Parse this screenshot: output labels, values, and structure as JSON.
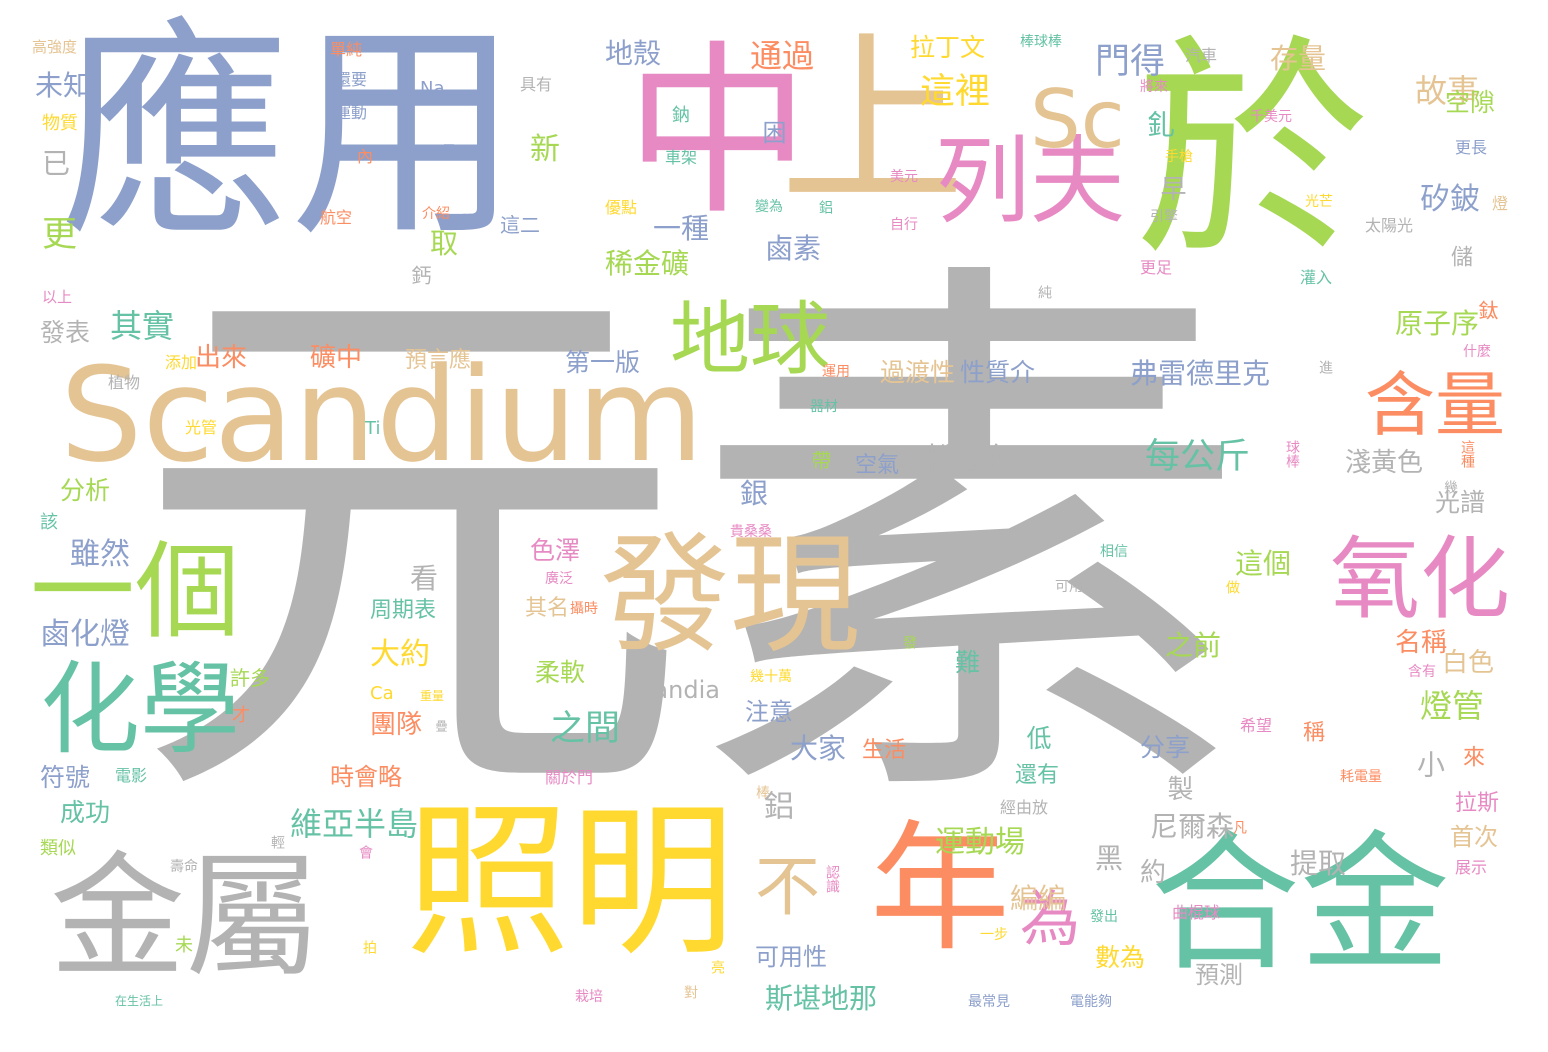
{
  "palette": {
    "gray": "#b3b3b3",
    "blue": "#8da0cb",
    "pink": "#e78ac3",
    "tan": "#e5c494",
    "green": "#a6d854",
    "yellow": "#ffd92f",
    "orange": "#fc8d62",
    "teal": "#66c2a5"
  },
  "words": [
    {
      "text": "元素",
      "color": "#b3b3b3"
    },
    {
      "text": "應用",
      "color": "#8da0cb"
    },
    {
      "text": "中",
      "color": "#e78ac3"
    },
    {
      "text": "上",
      "color": "#e5c494"
    },
    {
      "text": "於",
      "color": "#a6d854"
    },
    {
      "text": "Scandium",
      "color": "#e5c494"
    },
    {
      "text": "照明",
      "color": "#ffd92f"
    },
    {
      "text": "合金",
      "color": "#66c2a5"
    },
    {
      "text": "金屬",
      "color": "#b3b3b3"
    },
    {
      "text": "年",
      "color": "#fc8d62"
    },
    {
      "text": "發現",
      "color": "#e5c494"
    },
    {
      "text": "一個",
      "color": "#a6d854"
    },
    {
      "text": "化學",
      "color": "#66c2a5"
    },
    {
      "text": "氧化",
      "color": "#e78ac3"
    },
    {
      "text": "列夫",
      "color": "#e78ac3"
    },
    {
      "text": "Sc",
      "color": "#e5c494"
    },
    {
      "text": "地球",
      "color": "#a6d854"
    },
    {
      "text": "含量",
      "color": "#fc8d62"
    },
    {
      "text": "不",
      "color": "#e5c494"
    },
    {
      "text": "為",
      "color": "#e78ac3"
    },
    {
      "text": "高強度",
      "color": "#e5c494"
    },
    {
      "text": "未知",
      "color": "#8da0cb"
    },
    {
      "text": "物質",
      "color": "#ffd92f"
    },
    {
      "text": "已",
      "color": "#b3b3b3"
    },
    {
      "text": "更",
      "color": "#a6d854"
    },
    {
      "text": "以上",
      "color": "#e78ac3"
    },
    {
      "text": "發表",
      "color": "#b3b3b3"
    },
    {
      "text": "其實",
      "color": "#66c2a5"
    },
    {
      "text": "植物",
      "color": "#b3b3b3"
    },
    {
      "text": "添加",
      "color": "#ffd92f"
    },
    {
      "text": "出來",
      "color": "#fc8d62"
    },
    {
      "text": "礦中",
      "color": "#fc8d62"
    },
    {
      "text": "預言應",
      "color": "#e5c494"
    },
    {
      "text": "第一版",
      "color": "#8da0cb"
    },
    {
      "text": "光管",
      "color": "#ffd92f"
    },
    {
      "text": "Ti",
      "color": "#66c2a5"
    },
    {
      "text": "分析",
      "color": "#a6d854"
    },
    {
      "text": "該",
      "color": "#66c2a5"
    },
    {
      "text": "雖然",
      "color": "#8da0cb"
    },
    {
      "text": "看",
      "color": "#b3b3b3"
    },
    {
      "text": "鹵化燈",
      "color": "#8da0cb"
    },
    {
      "text": "許多",
      "color": "#a6d854"
    },
    {
      "text": "才",
      "color": "#fc8d62"
    },
    {
      "text": "Ca",
      "color": "#ffd92f"
    },
    {
      "text": "重量",
      "color": "#ffd92f"
    },
    {
      "text": "疊",
      "color": "#b3b3b3"
    },
    {
      "text": "符號",
      "color": "#8da0cb"
    },
    {
      "text": "電影",
      "color": "#66c2a5"
    },
    {
      "text": "成功",
      "color": "#66c2a5"
    },
    {
      "text": "類似",
      "color": "#a6d854"
    },
    {
      "text": "壽命",
      "color": "#b3b3b3"
    },
    {
      "text": "輕",
      "color": "#b3b3b3"
    },
    {
      "text": "會",
      "color": "#e78ac3"
    },
    {
      "text": "未",
      "color": "#a6d854"
    },
    {
      "text": "拍",
      "color": "#ffd92f"
    },
    {
      "text": "在生活上",
      "color": "#66c2a5"
    },
    {
      "text": "單純",
      "color": "#fc8d62"
    },
    {
      "text": "還要",
      "color": "#8da0cb"
    },
    {
      "text": "運動",
      "color": "#8da0cb"
    },
    {
      "text": "內",
      "color": "#fc8d62"
    },
    {
      "text": "航空",
      "color": "#fc8d62"
    },
    {
      "text": "介紹",
      "color": "#fc8d62"
    },
    {
      "text": "Na",
      "color": "#8da0cb"
    },
    {
      "text": "具有",
      "color": "#b3b3b3"
    },
    {
      "text": "品",
      "color": "#8da0cb"
    },
    {
      "text": "新",
      "color": "#a6d854"
    },
    {
      "text": "這二",
      "color": "#8da0cb"
    },
    {
      "text": "取",
      "color": "#a6d854"
    },
    {
      "text": "鈣",
      "color": "#b3b3b3"
    },
    {
      "text": "地殼",
      "color": "#8da0cb"
    },
    {
      "text": "通過",
      "color": "#fc8d62"
    },
    {
      "text": "鈉",
      "color": "#66c2a5"
    },
    {
      "text": "困",
      "color": "#8da0cb"
    },
    {
      "text": "車架",
      "color": "#66c2a5"
    },
    {
      "text": "優點",
      "color": "#ffd92f"
    },
    {
      "text": "一種",
      "color": "#8da0cb"
    },
    {
      "text": "變為",
      "color": "#66c2a5"
    },
    {
      "text": "鋁",
      "color": "#66c2a5"
    },
    {
      "text": "稀金礦",
      "color": "#a6d854"
    },
    {
      "text": "鹵素",
      "color": "#8da0cb"
    },
    {
      "text": "拉丁文",
      "color": "#ffd92f"
    },
    {
      "text": "這裡",
      "color": "#ffd92f"
    },
    {
      "text": "門得",
      "color": "#8da0cb"
    },
    {
      "text": "棒球棒",
      "color": "#66c2a5"
    },
    {
      "text": "汽車",
      "color": "#b3b3b3"
    },
    {
      "text": "存量",
      "color": "#e5c494"
    },
    {
      "text": "將來",
      "color": "#e78ac3"
    },
    {
      "text": "故事",
      "color": "#e5c494"
    },
    {
      "text": "千美元",
      "color": "#e78ac3"
    },
    {
      "text": "空隙",
      "color": "#a6d854"
    },
    {
      "text": "更長",
      "color": "#8da0cb"
    },
    {
      "text": "釓",
      "color": "#66c2a5"
    },
    {
      "text": "手槍",
      "color": "#ffd92f"
    },
    {
      "text": "美元",
      "color": "#e78ac3"
    },
    {
      "text": "早",
      "color": "#b3b3b3"
    },
    {
      "text": "光芒",
      "color": "#ffd92f"
    },
    {
      "text": "燈",
      "color": "#e5c494"
    },
    {
      "text": "自行",
      "color": "#e78ac3"
    },
    {
      "text": "引擎",
      "color": "#b3b3b3"
    },
    {
      "text": "矽鈹",
      "color": "#8da0cb"
    },
    {
      "text": "太陽光",
      "color": "#b3b3b3"
    },
    {
      "text": "儲",
      "color": "#b3b3b3"
    },
    {
      "text": "鈦",
      "color": "#fc8d62"
    },
    {
      "text": "純",
      "color": "#b3b3b3"
    },
    {
      "text": "更足",
      "color": "#e78ac3"
    },
    {
      "text": "灌入",
      "color": "#66c2a5"
    },
    {
      "text": "原子序",
      "color": "#a6d854"
    },
    {
      "text": "什麼",
      "color": "#e78ac3"
    },
    {
      "text": "過渡性",
      "color": "#e5c494"
    },
    {
      "text": "性質介",
      "color": "#8da0cb"
    },
    {
      "text": "弗雷德里克",
      "color": "#8da0cb"
    },
    {
      "text": "進",
      "color": "#b3b3b3"
    },
    {
      "text": "運用",
      "color": "#fc8d62"
    },
    {
      "text": "器材",
      "color": "#66c2a5"
    },
    {
      "text": "每公斤",
      "color": "#66c2a5"
    },
    {
      "text": "帶",
      "color": "#a6d854"
    },
    {
      "text": "空氣",
      "color": "#8da0cb"
    },
    {
      "text": "粉紅色",
      "color": "#b3b3b3"
    },
    {
      "text": "淺黃色",
      "color": "#b3b3b3"
    },
    {
      "text": "球棒",
      "color": "#e78ac3"
    },
    {
      "text": "這種",
      "color": "#fc8d62"
    },
    {
      "text": "光譜",
      "color": "#b3b3b3"
    },
    {
      "text": "銀",
      "color": "#8da0cb"
    },
    {
      "text": "幾",
      "color": "#b3b3b3"
    },
    {
      "text": "貴桑桑",
      "color": "#e78ac3"
    },
    {
      "text": "色澤",
      "color": "#e78ac3"
    },
    {
      "text": "廣泛",
      "color": "#e78ac3"
    },
    {
      "text": "其名",
      "color": "#e5c494"
    },
    {
      "text": "相信",
      "color": "#66c2a5"
    },
    {
      "text": "可用",
      "color": "#b3b3b3"
    },
    {
      "text": "這個",
      "color": "#a6d854"
    },
    {
      "text": "做",
      "color": "#ffd92f"
    },
    {
      "text": "周期表",
      "color": "#66c2a5"
    },
    {
      "text": "攝時",
      "color": "#fc8d62"
    },
    {
      "text": "大約",
      "color": "#ffd92f"
    },
    {
      "text": "柔軟",
      "color": "#a6d854"
    },
    {
      "text": "Scandia",
      "color": "#b3b3b3"
    },
    {
      "text": "幾十萬",
      "color": "#ffd92f"
    },
    {
      "text": "發",
      "color": "#a6d854"
    },
    {
      "text": "難",
      "color": "#66c2a5"
    },
    {
      "text": "之前",
      "color": "#a6d854"
    },
    {
      "text": "名稱",
      "color": "#fc8d62"
    },
    {
      "text": "白色",
      "color": "#e5c494"
    },
    {
      "text": "含有",
      "color": "#e78ac3"
    },
    {
      "text": "燈管",
      "color": "#a6d854"
    },
    {
      "text": "團隊",
      "color": "#fc8d62"
    },
    {
      "text": "之間",
      "color": "#66c2a5"
    },
    {
      "text": "注意",
      "color": "#8da0cb"
    },
    {
      "text": "大家",
      "color": "#8da0cb"
    },
    {
      "text": "生活",
      "color": "#fc8d62"
    },
    {
      "text": "低",
      "color": "#66c2a5"
    },
    {
      "text": "希望",
      "color": "#e78ac3"
    },
    {
      "text": "分享",
      "color": "#8da0cb"
    },
    {
      "text": "稱",
      "color": "#fc8d62"
    },
    {
      "text": "小",
      "color": "#b3b3b3"
    },
    {
      "text": "來",
      "color": "#fc8d62"
    },
    {
      "text": "時會略",
      "color": "#fc8d62"
    },
    {
      "text": "關於門",
      "color": "#e78ac3"
    },
    {
      "text": "還有",
      "color": "#66c2a5"
    },
    {
      "text": "製",
      "color": "#b3b3b3"
    },
    {
      "text": "耗電量",
      "color": "#fc8d62"
    },
    {
      "text": "棒",
      "color": "#e5c494"
    },
    {
      "text": "維亞半島",
      "color": "#66c2a5"
    },
    {
      "text": "鋁",
      "color": "#b3b3b3"
    },
    {
      "text": "拉斯",
      "color": "#e78ac3"
    },
    {
      "text": "經由放",
      "color": "#b3b3b3"
    },
    {
      "text": "尼爾森",
      "color": "#b3b3b3"
    },
    {
      "text": "凡",
      "color": "#fc8d62"
    },
    {
      "text": "首次",
      "color": "#e5c494"
    },
    {
      "text": "運動場",
      "color": "#a6d854"
    },
    {
      "text": "提取",
      "color": "#b3b3b3"
    },
    {
      "text": "黑",
      "color": "#b3b3b3"
    },
    {
      "text": "約",
      "color": "#b3b3b3"
    },
    {
      "text": "展示",
      "color": "#e78ac3"
    },
    {
      "text": "認識",
      "color": "#e78ac3"
    },
    {
      "text": "編編",
      "color": "#e5c494"
    },
    {
      "text": "曲棍球",
      "color": "#e78ac3"
    },
    {
      "text": "發出",
      "color": "#66c2a5"
    },
    {
      "text": "一步",
      "color": "#ffd92f"
    },
    {
      "text": "數為",
      "color": "#ffd92f"
    },
    {
      "text": "預測",
      "color": "#b3b3b3"
    },
    {
      "text": "可用性",
      "color": "#8da0cb"
    },
    {
      "text": "斯堪地那",
      "color": "#66c2a5"
    },
    {
      "text": "栽培",
      "color": "#e78ac3"
    },
    {
      "text": "對",
      "color": "#e5c494"
    },
    {
      "text": "亮",
      "color": "#ffd92f"
    },
    {
      "text": "最常見",
      "color": "#8da0cb"
    },
    {
      "text": "電能夠",
      "color": "#8da0cb"
    }
  ]
}
